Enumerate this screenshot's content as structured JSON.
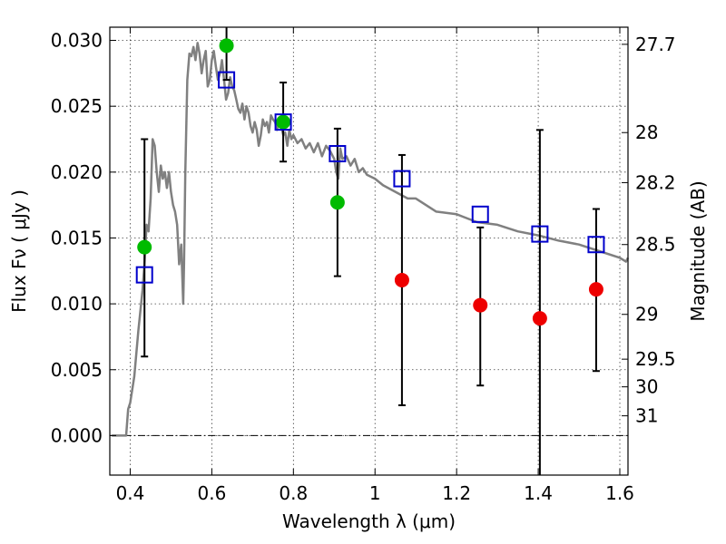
{
  "chart_data": {
    "type": "scatter",
    "xlabel": "Wavelength  λ (μm)",
    "ylabel": "Flux  Fν  ( μJy )",
    "y2label": "Magnitude (AB)",
    "xlim": [
      0.35,
      1.62
    ],
    "ylim": [
      -0.003,
      0.031
    ],
    "grid": true,
    "x_ticks": [
      {
        "value": 0.4,
        "label": "0.4"
      },
      {
        "value": 0.6,
        "label": "0.6"
      },
      {
        "value": 0.8,
        "label": "0.8"
      },
      {
        "value": 1.0,
        "label": "1"
      },
      {
        "value": 1.2,
        "label": "1.2"
      },
      {
        "value": 1.4,
        "label": "1.4"
      },
      {
        "value": 1.6,
        "label": "1.6"
      }
    ],
    "y_ticks": [
      {
        "value": 0.0,
        "label": "0.000"
      },
      {
        "value": 0.005,
        "label": "0.005"
      },
      {
        "value": 0.01,
        "label": "0.010"
      },
      {
        "value": 0.015,
        "label": "0.015"
      },
      {
        "value": 0.02,
        "label": "0.020"
      },
      {
        "value": 0.025,
        "label": "0.025"
      },
      {
        "value": 0.03,
        "label": "0.030"
      }
    ],
    "y2_ticks": [
      {
        "flux": 0.0297,
        "label": "27.7"
      },
      {
        "flux": 0.023,
        "label": "28"
      },
      {
        "flux": 0.0192,
        "label": "28.2"
      },
      {
        "flux": 0.0145,
        "label": "28.5"
      },
      {
        "flux": 0.0092,
        "label": "29"
      },
      {
        "flux": 0.0058,
        "label": "29.5"
      },
      {
        "flux": 0.0037,
        "label": "30"
      },
      {
        "flux": 0.0015,
        "label": "31"
      }
    ],
    "zero_line": 0.0,
    "template_sed": {
      "color": "#808080",
      "x": [
        0.355,
        0.39,
        0.395,
        0.4,
        0.41,
        0.42,
        0.43,
        0.435,
        0.44,
        0.445,
        0.45,
        0.455,
        0.46,
        0.465,
        0.47,
        0.475,
        0.48,
        0.485,
        0.49,
        0.495,
        0.5,
        0.505,
        0.51,
        0.515,
        0.52,
        0.525,
        0.53,
        0.532,
        0.535,
        0.54,
        0.545,
        0.55,
        0.555,
        0.56,
        0.565,
        0.57,
        0.575,
        0.58,
        0.585,
        0.59,
        0.595,
        0.6,
        0.605,
        0.61,
        0.615,
        0.62,
        0.625,
        0.63,
        0.635,
        0.64,
        0.645,
        0.65,
        0.655,
        0.66,
        0.665,
        0.67,
        0.675,
        0.68,
        0.685,
        0.69,
        0.695,
        0.7,
        0.705,
        0.71,
        0.715,
        0.72,
        0.725,
        0.73,
        0.735,
        0.74,
        0.745,
        0.75,
        0.755,
        0.76,
        0.765,
        0.77,
        0.775,
        0.78,
        0.785,
        0.79,
        0.795,
        0.8,
        0.81,
        0.82,
        0.83,
        0.84,
        0.85,
        0.86,
        0.87,
        0.88,
        0.89,
        0.9,
        0.905,
        0.91,
        0.915,
        0.92,
        0.93,
        0.94,
        0.95,
        0.96,
        0.97,
        0.98,
        1.0,
        1.02,
        1.05,
        1.08,
        1.1,
        1.15,
        1.2,
        1.25,
        1.3,
        1.35,
        1.4,
        1.45,
        1.5,
        1.55,
        1.6,
        1.615,
        1.62
      ],
      "y": [
        0.0,
        0.0,
        0.002,
        0.0025,
        0.0045,
        0.008,
        0.011,
        0.013,
        0.016,
        0.0155,
        0.018,
        0.0225,
        0.022,
        0.02,
        0.0185,
        0.0205,
        0.0195,
        0.02,
        0.0188,
        0.02,
        0.0185,
        0.0175,
        0.017,
        0.016,
        0.013,
        0.0145,
        0.01,
        0.013,
        0.02,
        0.027,
        0.029,
        0.0288,
        0.0295,
        0.0285,
        0.0298,
        0.029,
        0.0275,
        0.0285,
        0.0292,
        0.0265,
        0.027,
        0.0285,
        0.0292,
        0.028,
        0.027,
        0.0275,
        0.0285,
        0.027,
        0.0255,
        0.026,
        0.0272,
        0.0265,
        0.0262,
        0.0255,
        0.0248,
        0.0245,
        0.0252,
        0.024,
        0.025,
        0.0245,
        0.0235,
        0.023,
        0.0238,
        0.0232,
        0.022,
        0.0228,
        0.024,
        0.0235,
        0.0238,
        0.023,
        0.0243,
        0.024,
        0.0238,
        0.0232,
        0.024,
        0.0235,
        0.0228,
        0.023,
        0.022,
        0.0232,
        0.0225,
        0.0228,
        0.0222,
        0.0225,
        0.0218,
        0.0222,
        0.0215,
        0.0222,
        0.0212,
        0.022,
        0.0216,
        0.021,
        0.02,
        0.0195,
        0.0218,
        0.021,
        0.0212,
        0.0205,
        0.021,
        0.02,
        0.0203,
        0.0198,
        0.0195,
        0.019,
        0.0185,
        0.018,
        0.018,
        0.017,
        0.0168,
        0.0162,
        0.016,
        0.0155,
        0.0152,
        0.0148,
        0.0145,
        0.014,
        0.0135,
        0.0132,
        0.0135
      ]
    },
    "observed_fluxes": {
      "color": "#0000cc",
      "marker": "open-square",
      "points": [
        {
          "x": 0.435,
          "y": 0.0122,
          "ylo": 0.006,
          "yhi": 0.0225
        },
        {
          "x": 0.636,
          "y": 0.027,
          "ylo": 0.027,
          "yhi": 0.032
        },
        {
          "x": 0.775,
          "y": 0.0238,
          "ylo": 0.0208,
          "yhi": 0.0268
        },
        {
          "x": 0.908,
          "y": 0.0214,
          "ylo": 0.0121,
          "yhi": 0.0233
        },
        {
          "x": 1.066,
          "y": 0.0195,
          "ylo": 0.0023,
          "yhi": 0.0213
        },
        {
          "x": 1.258,
          "y": 0.0168,
          "ylo": 0.0038,
          "yhi": 0.0158
        },
        {
          "x": 1.404,
          "y": 0.0153,
          "ylo": -0.0035,
          "yhi": 0.0232
        },
        {
          "x": 1.542,
          "y": 0.0145,
          "ylo": 0.0049,
          "yhi": 0.0172
        }
      ]
    },
    "model_points_detected": {
      "color": "#00bb00",
      "marker": "filled-circle",
      "points": [
        {
          "x": 0.435,
          "y": 0.0143
        },
        {
          "x": 0.636,
          "y": 0.0296
        },
        {
          "x": 0.775,
          "y": 0.0238
        },
        {
          "x": 0.908,
          "y": 0.0177
        }
      ]
    },
    "model_points_undetected": {
      "color": "#ee0000",
      "marker": "filled-circle",
      "points": [
        {
          "x": 1.066,
          "y": 0.0118
        },
        {
          "x": 1.258,
          "y": 0.0099
        },
        {
          "x": 1.404,
          "y": 0.0089
        },
        {
          "x": 1.542,
          "y": 0.0111
        }
      ]
    }
  }
}
